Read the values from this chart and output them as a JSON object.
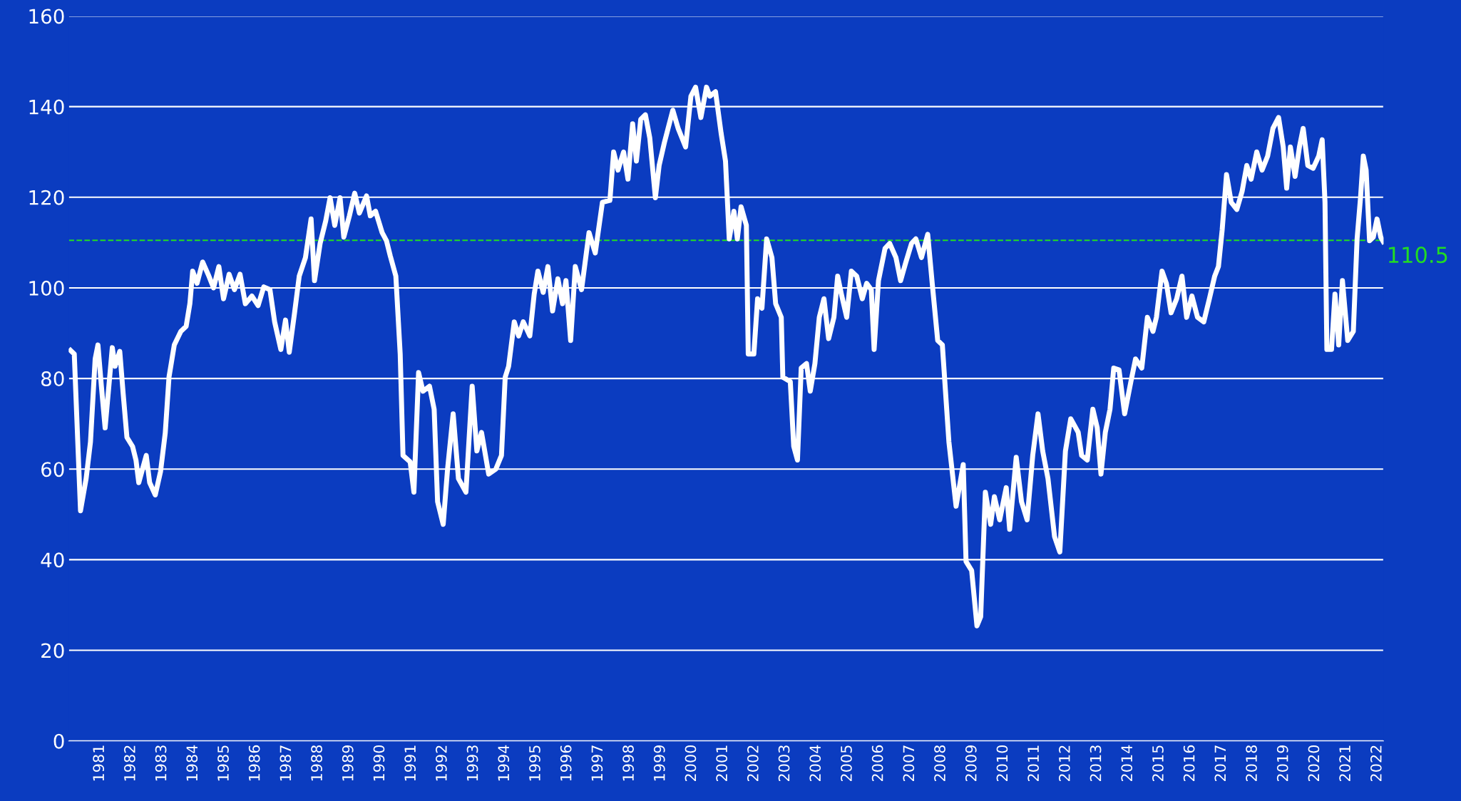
{
  "chart_data": {
    "type": "line",
    "x": [
      1980.06,
      1980.18,
      1980.38,
      1980.56,
      1980.7,
      1980.85,
      1980.94,
      1981.05,
      1981.17,
      1981.29,
      1981.4,
      1981.49,
      1981.64,
      1981.75,
      1981.87,
      1982.05,
      1982.16,
      1982.25,
      1982.37,
      1982.49,
      1982.6,
      1982.78,
      1982.95,
      1983.1,
      1983.22,
      1983.39,
      1983.6,
      1983.77,
      1983.89,
      1983.98,
      1984.12,
      1984.3,
      1984.5,
      1984.65,
      1984.82,
      1984.97,
      1985.15,
      1985.32,
      1985.5,
      1985.67,
      1985.88,
      1986.08,
      1986.26,
      1986.46,
      1986.61,
      1986.81,
      1986.96,
      1987.08,
      1987.25,
      1987.4,
      1987.6,
      1987.78,
      1987.89,
      1988.07,
      1988.25,
      1988.39,
      1988.54,
      1988.71,
      1988.83,
      1989.01,
      1989.18,
      1989.33,
      1989.56,
      1989.68,
      1989.85,
      1990.06,
      1990.2,
      1990.32,
      1990.5,
      1990.64,
      1990.73,
      1990.96,
      1991.08,
      1991.23,
      1991.37,
      1991.58,
      1991.73,
      1991.84,
      1992.02,
      1992.16,
      1992.34,
      1992.51,
      1992.75,
      1992.95,
      1993.1,
      1993.25,
      1993.48,
      1993.71,
      1993.89,
      1994.01,
      1994.12,
      1994.3,
      1994.44,
      1994.59,
      1994.8,
      1994.94,
      1995.06,
      1995.23,
      1995.38,
      1995.53,
      1995.7,
      1995.85,
      1995.96,
      1996.11,
      1996.26,
      1996.46,
      1996.7,
      1996.9,
      1997.13,
      1997.37,
      1997.49,
      1997.63,
      1997.81,
      1997.95,
      1998.1,
      1998.22,
      1998.36,
      1998.51,
      1998.65,
      1998.83,
      1998.95,
      1999.12,
      1999.39,
      1999.56,
      1999.8,
      1999.97,
      2000.12,
      2000.29,
      2000.47,
      2000.58,
      2000.76,
      2000.94,
      2001.08,
      2001.2,
      2001.35,
      2001.46,
      2001.58,
      2001.75,
      2001.81,
      2001.99,
      2002.11,
      2002.25,
      2002.4,
      2002.57,
      2002.69,
      2002.87,
      2002.92,
      2003.16,
      2003.27,
      2003.39,
      2003.51,
      2003.68,
      2003.8,
      2003.95,
      2004.09,
      2004.24,
      2004.39,
      2004.56,
      2004.68,
      2004.8,
      2004.97,
      2005.12,
      2005.29,
      2005.47,
      2005.61,
      2005.76,
      2005.85,
      2005.99,
      2006.2,
      2006.35,
      2006.55,
      2006.7,
      2006.87,
      2007.05,
      2007.19,
      2007.37,
      2007.57,
      2007.72,
      2007.89,
      2008.04,
      2008.25,
      2008.48,
      2008.71,
      2008.8,
      2008.98,
      2009.15,
      2009.27,
      2009.42,
      2009.59,
      2009.71,
      2009.88,
      2010.09,
      2010.2,
      2010.41,
      2010.58,
      2010.76,
      2010.94,
      2011.11,
      2011.26,
      2011.43,
      2011.64,
      2011.81,
      2011.99,
      2012.16,
      2012.4,
      2012.51,
      2012.69,
      2012.87,
      2013.01,
      2013.13,
      2013.27,
      2013.42,
      2013.54,
      2013.71,
      2013.89,
      2014.09,
      2014.24,
      2014.44,
      2014.62,
      2014.8,
      2014.91,
      2015.09,
      2015.23,
      2015.38,
      2015.56,
      2015.73,
      2015.88,
      2016.05,
      2016.23,
      2016.43,
      2016.61,
      2016.78,
      2016.9,
      2017.02,
      2017.16,
      2017.31,
      2017.49,
      2017.66,
      2017.81,
      2017.95,
      2018.13,
      2018.3,
      2018.48,
      2018.65,
      2018.83,
      2018.98,
      2019.09,
      2019.21,
      2019.36,
      2019.5,
      2019.62,
      2019.77,
      2019.94,
      2020.12,
      2020.23,
      2020.32,
      2020.38,
      2020.53,
      2020.64,
      2020.76,
      2020.88,
      2021.05,
      2021.23,
      2021.35,
      2021.46,
      2021.55,
      2021.64,
      2021.75,
      2021.87,
      2021.99,
      2022.11,
      2022.19
    ],
    "series": [
      {
        "color": "#ffffff",
        "values": [
          86.2,
          85.4,
          50.8,
          57.9,
          66,
          84.3,
          87.4,
          78.3,
          69.1,
          78.3,
          86.8,
          82.7,
          86,
          76.6,
          67,
          65,
          62,
          57,
          60,
          63,
          57,
          54.3,
          59.5,
          68,
          80.3,
          87.4,
          90.4,
          91.5,
          96.5,
          103.7,
          101,
          105.7,
          102.6,
          100,
          104.7,
          97.6,
          103,
          99.6,
          103,
          96.5,
          98.2,
          96.1,
          100.2,
          99.6,
          92.5,
          86.4,
          92.9,
          85.8,
          94.5,
          102.6,
          106.7,
          115.2,
          101.6,
          109.8,
          114.8,
          119.9,
          113.8,
          119.9,
          111.2,
          115.9,
          120.9,
          116.5,
          120.3,
          115.9,
          116.9,
          112.2,
          110.4,
          107.1,
          102.6,
          85.4,
          63,
          61.6,
          54.9,
          81.3,
          77.2,
          78.3,
          73.2,
          52.8,
          47.8,
          60,
          72.2,
          57.9,
          54.9,
          78.3,
          64,
          68.1,
          58.9,
          60,
          63,
          80.3,
          82.7,
          92.5,
          89.4,
          92.5,
          89.4,
          98.6,
          103.7,
          99,
          104.7,
          94.9,
          102,
          96.5,
          101.6,
          88.4,
          104.7,
          99.6,
          112.2,
          107.7,
          118.9,
          119.3,
          130,
          126,
          130,
          124,
          136.2,
          128,
          137.2,
          138.2,
          133.1,
          119.9,
          127,
          132.1,
          139.2,
          135.2,
          131.1,
          142.3,
          144.3,
          137.6,
          144.3,
          142.3,
          143.3,
          134.1,
          128,
          110.8,
          116.9,
          110.8,
          117.9,
          113.8,
          85.4,
          85.4,
          97.6,
          95.5,
          110.8,
          106.7,
          96.5,
          93.5,
          80.3,
          79.3,
          65,
          62,
          82.3,
          83.3,
          77.2,
          83.3,
          93.5,
          97.6,
          88.8,
          93.5,
          102.6,
          98.6,
          93.5,
          103.7,
          102.6,
          97.6,
          101,
          99.6,
          86.4,
          101.6,
          108.7,
          109.8,
          106.7,
          101.6,
          105.7,
          109.8,
          110.8,
          106.7,
          111.8,
          100.6,
          88.4,
          87.4,
          66,
          51.8,
          61,
          39.6,
          37.6,
          25.4,
          27.4,
          54.9,
          47.8,
          53.9,
          48.8,
          55.9,
          46.7,
          62.6,
          52.8,
          48.8,
          63,
          72.2,
          64,
          57.9,
          45.1,
          41.7,
          64,
          71.1,
          68.1,
          63,
          62,
          73.2,
          69.1,
          58.9,
          68.1,
          73.2,
          82.3,
          81.9,
          72.2,
          79.3,
          84.3,
          82.3,
          93.5,
          90.4,
          93.5,
          103.7,
          101,
          94.5,
          97.6,
          102.6,
          93.5,
          98.2,
          93.5,
          92.5,
          97.6,
          102.6,
          104.7,
          112.8,
          125,
          118.9,
          117.3,
          121.3,
          127,
          124,
          130,
          126,
          129.1,
          135.2,
          137.6,
          131.1,
          122,
          131.1,
          124.6,
          131.1,
          135.2,
          127,
          126.4,
          129.1,
          132.7,
          118.9,
          86.4,
          86.4,
          98.6,
          87.4,
          101.6,
          88.4,
          90.4,
          110.8,
          119.9,
          129.1,
          126,
          110.4,
          111.2,
          115.2,
          111.2,
          110.2
        ]
      }
    ],
    "xlim": [
      1980,
      2022.2
    ],
    "xticks": [
      1981,
      1982,
      1983,
      1984,
      1985,
      1986,
      1987,
      1988,
      1989,
      1990,
      1991,
      1992,
      1993,
      1994,
      1995,
      1996,
      1997,
      1998,
      1999,
      2000,
      2001,
      2002,
      2003,
      2004,
      2005,
      2006,
      2007,
      2008,
      2009,
      2010,
      2011,
      2012,
      2013,
      2014,
      2015,
      2016,
      2017,
      2018,
      2019,
      2020,
      2021,
      2022
    ],
    "ylim": [
      0,
      160
    ],
    "yticks": [
      0,
      20,
      40,
      60,
      80,
      100,
      120,
      140,
      160
    ],
    "grid": "y",
    "marker": "none",
    "line_style": "solid",
    "ref_lines": [
      {
        "axis": "y",
        "value": 110.5,
        "label": "110.5",
        "color": "#22dd22",
        "line_style": "dashed"
      }
    ]
  }
}
